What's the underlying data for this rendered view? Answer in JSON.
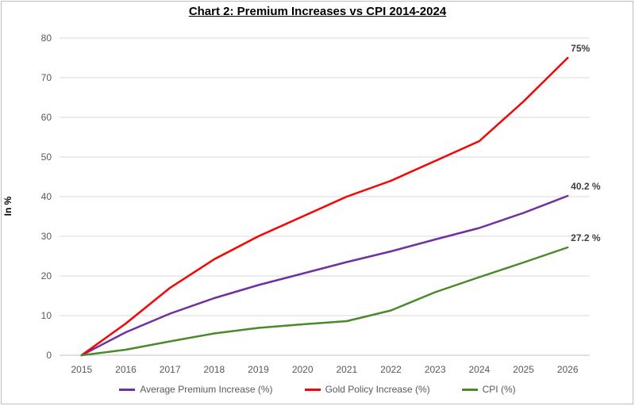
{
  "chart_data": {
    "type": "line",
    "title": "Chart 2: Premium Increases vs CPI 2014-2024",
    "ylabel": "In %",
    "xlabel": "",
    "ylim": [
      0,
      80
    ],
    "yticks": [
      0,
      10,
      20,
      30,
      40,
      50,
      60,
      70,
      80
    ],
    "grid": true,
    "legend_position": "bottom",
    "x": [
      "2015",
      "2016",
      "2017",
      "2018",
      "2019",
      "2020",
      "2021",
      "2022",
      "2023",
      "2024",
      "2025",
      "2026"
    ],
    "series": [
      {
        "name": "Average Premium Increase (%)",
        "color": "#7030a0",
        "values": [
          0,
          5.8,
          10.5,
          14.4,
          17.7,
          20.6,
          23.5,
          26.2,
          29.2,
          32.1,
          35.9,
          40.2
        ],
        "end_label": "40.2 %"
      },
      {
        "name": "Gold Policy Increase (%)",
        "color": "#ff0000",
        "values": [
          0,
          8,
          17,
          24.2,
          30,
          35,
          40,
          44,
          49,
          54,
          64,
          75
        ],
        "end_label": "75%"
      },
      {
        "name": "CPI (%)",
        "color": "#4a8a2a",
        "values": [
          0,
          1.4,
          3.5,
          5.5,
          6.9,
          7.8,
          8.6,
          11.3,
          15.9,
          19.7,
          23.4,
          27.2
        ],
        "end_label": "27.2 %"
      }
    ]
  }
}
